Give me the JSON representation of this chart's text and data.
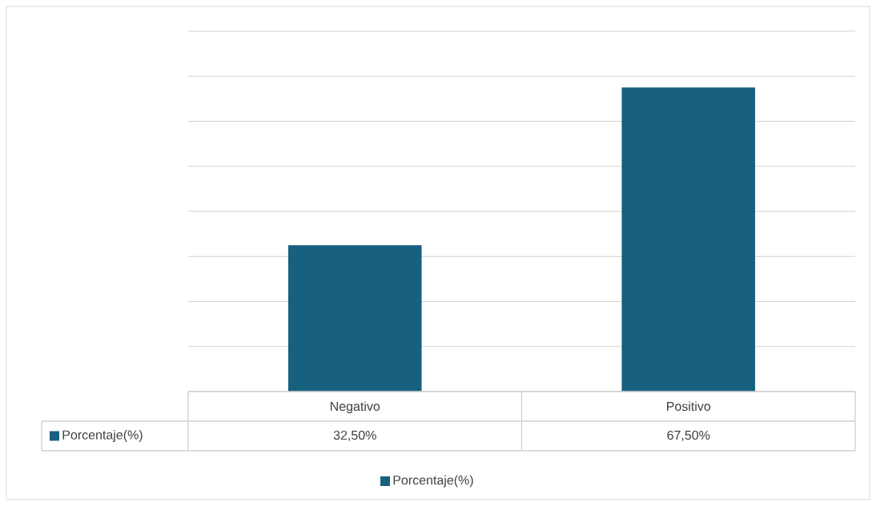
{
  "chart_data": {
    "type": "bar",
    "categories": [
      "Negativo",
      "Positivo"
    ],
    "series": [
      {
        "name": "Porcentaje(%)",
        "color": "#17607f",
        "values": [
          32.5,
          67.5
        ],
        "value_labels": [
          "32,50%",
          "67,50%"
        ]
      }
    ],
    "ylim": [
      0,
      80
    ],
    "yticks": [
      {
        "value": 0,
        "label": null
      },
      {
        "value": 10,
        "label": null
      },
      {
        "value": 20,
        "label": null
      },
      {
        "value": 30,
        "label": null
      },
      {
        "value": 40,
        "label": null
      },
      {
        "value": 50,
        "label": null
      },
      {
        "value": 60,
        "label": null
      },
      {
        "value": 70,
        "label": null
      },
      {
        "value": 80,
        "label": null
      }
    ],
    "grid": "y",
    "legend": "bottom"
  }
}
